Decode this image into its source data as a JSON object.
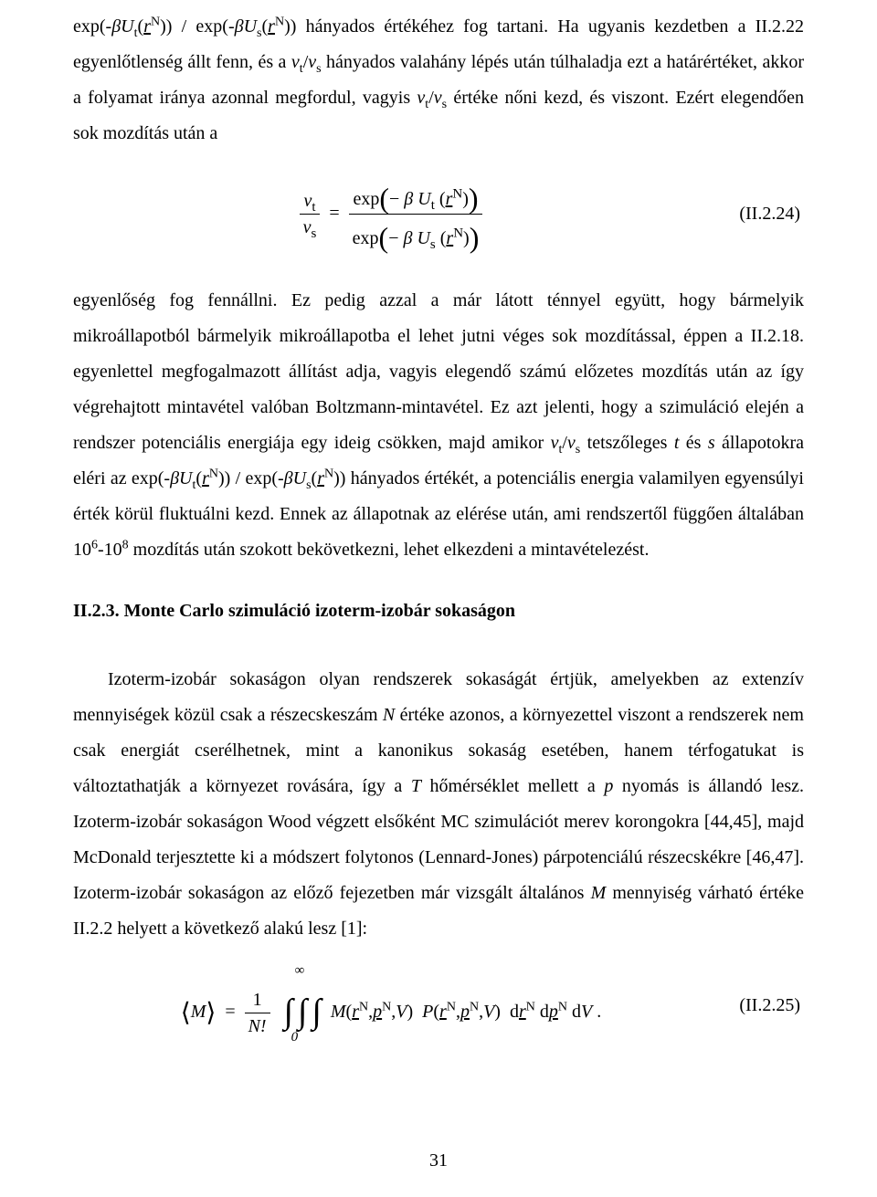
{
  "text": {
    "p1a": "exp(-",
    "p1b": ")) / exp(-",
    "p1c": ")) hányados értékéhez fog tartani. Ha ugyanis kezdetben a II.2.22 egyenlőtlenség állt fenn, és a ",
    "p1d": " hányados valahány lépés után túlhaladja ezt a határértéket, akkor a folyamat iránya azonnal megfordul, vagyis ",
    "p1e": " értéke nőni kezd, és viszont. Ezért elegendően sok mozdítás után a",
    "p2a": "egyenlőség fog fennállni. Ez pedig azzal a már látott ténnyel együtt, hogy bármelyik mikroállapotból bármelyik mikroállapotba el lehet jutni véges sok mozdítással, éppen a II.2.18. egyenlettel megfogalmazott állítást adja, vagyis elegendő számú előzetes mozdítás után az így végrehajtott mintavétel valóban Boltzmann-mintavétel. Ez azt jelenti, hogy a szimuláció elején a rendszer potenciális energiája egy ideig csökken, majd amikor ",
    "p2b": " tetszőleges ",
    "p2c": " és ",
    "p2d": " állapotokra eléri az exp(-",
    "p2e": ")) / exp(-",
    "p2f": ")) hányados értékét, a potenciális energia valamilyen egyensúlyi érték körül fluktuálni kezd. Ennek az állapotnak az elérése után, ami rendszertől függően általában 10",
    "p2g": "-10",
    "p2h": " mozdítás után szokott bekövetkezni, lehet elkezdeni a mintavételezést.",
    "heading": "II.2.3. Monte Carlo szimuláció izoterm-izobár sokaságon",
    "p3a": "Izoterm-izobár sokaságon olyan rendszerek sokaságát értjük, amelyekben az extenzív mennyiségek közül csak a részecskeszám ",
    "p3b": " értéke azonos, a környezettel viszont a rendszerek nem csak energiát cserélhetnek, mint a kanonikus sokaság esetében, hanem térfogatukat is változtathatják a környezet rovására, így a ",
    "p3c": " hőmérséklet mellett a ",
    "p3d": " nyomás is állandó lesz. Izoterm-izobár sokaságon Wood végzett elsőként MC szimulációt merev korongokra [44,45], majd McDonald terjesztette ki a módszert folytonos (Lennard-Jones) párpotenciálú részecskékre [46,47]. Izoterm-izobár sokaságon az előző fejezetben már vizsgált általános ",
    "p3e": " mennyiség várható értéke II.2.2 helyett a következő alakú lesz [1]:"
  },
  "math": {
    "beta": "β",
    "U": "U",
    "r": "r",
    "N": "N",
    "t": "t",
    "s": "s",
    "nu": "ν",
    "slash": "/",
    "exp": "exp",
    "minus": "−",
    "eq": "=",
    "T": "T",
    "p": "p",
    "M": "M",
    "V": "V",
    "Nsym": "N",
    "six": "6",
    "eight": "8",
    "one": "1",
    "fact": "N!",
    "inf": "∞",
    "zero": "0",
    "comma": ",",
    "P": "P",
    "d": "d",
    "dot": " ."
  },
  "eqnum": {
    "e24": "(II.2.24)",
    "e25": "(II.2.25)"
  },
  "page_number": "31"
}
